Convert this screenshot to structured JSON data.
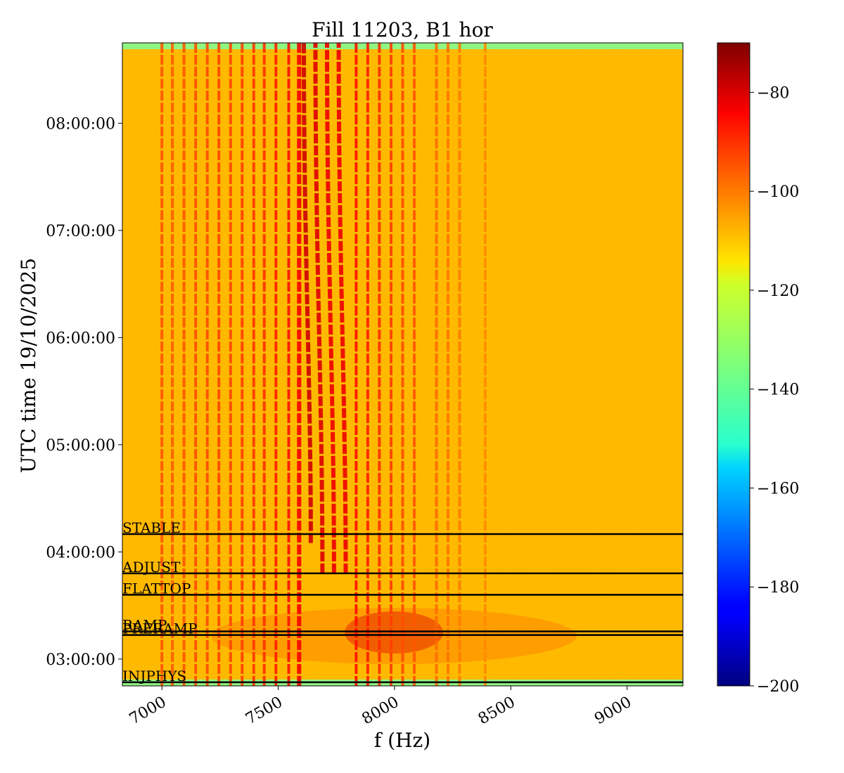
{
  "chart_data": {
    "type": "heatmap",
    "title": "Fill 11203, B1 hor",
    "xlabel": "f (Hz)",
    "ylabel": "UTC time 19/10/2025",
    "xlim": [
      6830,
      9240
    ],
    "ylim": [
      "02:45:00",
      "08:45:00"
    ],
    "x_ticks": [
      {
        "value": 7000,
        "label": "7000"
      },
      {
        "value": 7500,
        "label": "7500"
      },
      {
        "value": 8000,
        "label": "8000"
      },
      {
        "value": 8500,
        "label": "8500"
      },
      {
        "value": 9000,
        "label": "9000"
      }
    ],
    "y_ticks": [
      {
        "value": "03:00:00",
        "label": "03:00:00"
      },
      {
        "value": "04:00:00",
        "label": "04:00:00"
      },
      {
        "value": "05:00:00",
        "label": "05:00:00"
      },
      {
        "value": "06:00:00",
        "label": "06:00:00"
      },
      {
        "value": "07:00:00",
        "label": "07:00:00"
      },
      {
        "value": "08:00:00",
        "label": "08:00:00"
      }
    ],
    "colorbar": {
      "colormap": "jet",
      "vmin": -200,
      "vmax": -70,
      "ticks": [
        {
          "value": -80,
          "label": "−80"
        },
        {
          "value": -100,
          "label": "−100"
        },
        {
          "value": -120,
          "label": "−120"
        },
        {
          "value": -140,
          "label": "−140"
        },
        {
          "value": -160,
          "label": "−160"
        },
        {
          "value": -180,
          "label": "−180"
        },
        {
          "value": -200,
          "label": "−200"
        }
      ]
    },
    "background_level": -110,
    "lines": [
      {
        "f_start": 7000,
        "f_end": 7000,
        "level": -97,
        "t_start": "02:45:00",
        "t_end": "08:45:00"
      },
      {
        "f_start": 7045,
        "f_end": 7045,
        "level": -98,
        "t_start": "02:45:00",
        "t_end": "08:45:00"
      },
      {
        "f_start": 7095,
        "f_end": 7095,
        "level": -97,
        "t_start": "02:45:00",
        "t_end": "08:45:00"
      },
      {
        "f_start": 7145,
        "f_end": 7145,
        "level": -96,
        "t_start": "02:45:00",
        "t_end": "08:45:00"
      },
      {
        "f_start": 7195,
        "f_end": 7195,
        "level": -96,
        "t_start": "02:45:00",
        "t_end": "08:45:00"
      },
      {
        "f_start": 7245,
        "f_end": 7245,
        "level": -95,
        "t_start": "02:45:00",
        "t_end": "08:45:00"
      },
      {
        "f_start": 7295,
        "f_end": 7295,
        "level": -95,
        "t_start": "02:45:00",
        "t_end": "08:45:00"
      },
      {
        "f_start": 7345,
        "f_end": 7345,
        "level": -94,
        "t_start": "02:45:00",
        "t_end": "08:45:00"
      },
      {
        "f_start": 7395,
        "f_end": 7395,
        "level": -93,
        "t_start": "02:45:00",
        "t_end": "08:45:00"
      },
      {
        "f_start": 7440,
        "f_end": 7440,
        "level": -92,
        "t_start": "02:45:00",
        "t_end": "08:45:00"
      },
      {
        "f_start": 7490,
        "f_end": 7490,
        "level": -90,
        "t_start": "02:45:00",
        "t_end": "08:45:00"
      },
      {
        "f_start": 7545,
        "f_end": 7545,
        "level": -88,
        "t_start": "02:45:00",
        "t_end": "08:45:00"
      },
      {
        "f_start": 7590,
        "f_end": 7590,
        "level": -85,
        "t_start": "02:45:00",
        "t_end": "08:45:00"
      },
      {
        "f_start": 7640,
        "f_end": 7610,
        "level": -80,
        "t_start": "04:05:00",
        "t_end": "08:45:00"
      },
      {
        "f_start": 7690,
        "f_end": 7660,
        "level": -82,
        "t_start": "03:48:00",
        "t_end": "08:45:00"
      },
      {
        "f_start": 7740,
        "f_end": 7710,
        "level": -84,
        "t_start": "03:48:00",
        "t_end": "08:45:00"
      },
      {
        "f_start": 7790,
        "f_end": 7760,
        "level": -84,
        "t_start": "03:48:00",
        "t_end": "08:45:00"
      },
      {
        "f_start": 7835,
        "f_end": 7835,
        "level": -88,
        "t_start": "02:45:00",
        "t_end": "08:45:00"
      },
      {
        "f_start": 7885,
        "f_end": 7885,
        "level": -90,
        "t_start": "02:45:00",
        "t_end": "08:45:00"
      },
      {
        "f_start": 7935,
        "f_end": 7935,
        "level": -92,
        "t_start": "02:45:00",
        "t_end": "08:45:00"
      },
      {
        "f_start": 7985,
        "f_end": 7985,
        "level": -94,
        "t_start": "02:45:00",
        "t_end": "08:45:00"
      },
      {
        "f_start": 8035,
        "f_end": 8035,
        "level": -96,
        "t_start": "02:45:00",
        "t_end": "08:45:00"
      },
      {
        "f_start": 8085,
        "f_end": 8085,
        "level": -97,
        "t_start": "02:45:00",
        "t_end": "08:45:00"
      },
      {
        "f_start": 8180,
        "f_end": 8180,
        "level": -100,
        "t_start": "02:45:00",
        "t_end": "08:45:00"
      },
      {
        "f_start": 8230,
        "f_end": 8230,
        "level": -101,
        "t_start": "02:45:00",
        "t_end": "08:45:00"
      },
      {
        "f_start": 8280,
        "f_end": 8280,
        "level": -102,
        "t_start": "02:45:00",
        "t_end": "08:45:00"
      },
      {
        "f_start": 8390,
        "f_end": 8390,
        "level": -104,
        "t_start": "02:45:00",
        "t_end": "08:45:00"
      }
    ],
    "phases": [
      {
        "label": "STABLE",
        "time": "04:10:00"
      },
      {
        "label": "ADJUST",
        "time": "03:48:00"
      },
      {
        "label": "FLATTOP",
        "time": "03:36:00"
      },
      {
        "label": "RAMP",
        "time": "03:15:30"
      },
      {
        "label": "PRERAMP",
        "time": "03:13:30"
      },
      {
        "label": "INJPHYS",
        "time": "02:47:00"
      }
    ]
  }
}
